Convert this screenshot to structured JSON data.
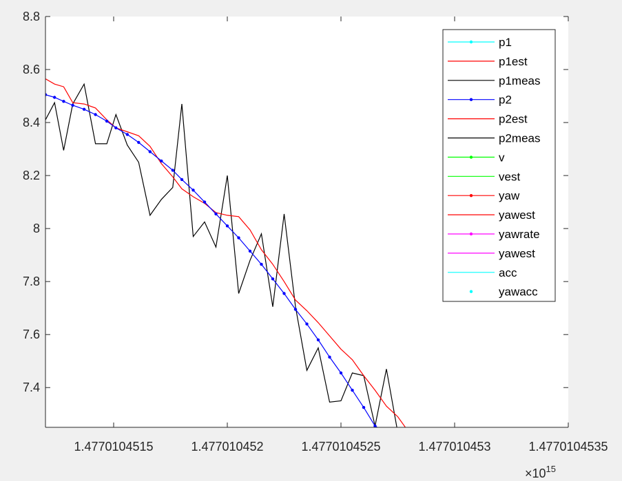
{
  "chart_data": {
    "type": "line",
    "title": "",
    "xlabel": "",
    "ylabel": "",
    "xlim": [
      1.4770104512,
      1.4770104535
    ],
    "ylim": [
      7.25,
      8.8
    ],
    "x_exponent_label": "×10",
    "x_exponent": "15",
    "x_ticks": [
      1.4770104515,
      1.477010452,
      1.4770104525,
      1.477010453,
      1.4770104535
    ],
    "x_tick_labels": [
      "1.4770104515",
      "1.477010452",
      "1.4770104525",
      "1.477010453",
      "1.4770104535"
    ],
    "y_ticks": [
      7.4,
      7.6,
      7.8,
      8.0,
      8.2,
      8.4,
      8.6,
      8.8
    ],
    "y_tick_labels": [
      "7.4",
      "7.6",
      "7.8",
      "8",
      "8.2",
      "8.4",
      "8.6",
      "8.8"
    ],
    "legend_position": "top-right",
    "background": "#ffffff",
    "series": [
      {
        "name": "p2meas",
        "color": "#000000",
        "marker": "none",
        "x": [
          1.4770104512,
          1.47701045124,
          1.47701045128,
          1.47701045132,
          1.47701045137,
          1.47701045142,
          1.47701045147,
          1.47701045151,
          1.47701045156,
          1.47701045161,
          1.47701045166,
          1.47701045171,
          1.47701045176,
          1.4770104518,
          1.47701045185,
          1.4770104519,
          1.47701045195,
          1.477010452,
          1.47701045205,
          1.4770104521,
          1.47701045215,
          1.4770104522,
          1.47701045225,
          1.4770104523,
          1.47701045235,
          1.4770104524,
          1.47701045245,
          1.4770104525,
          1.47701045255,
          1.4770104526,
          1.47701045265,
          1.4770104527,
          1.47701045275,
          1.4770104528,
          1.47701045284,
          1.47701045288
        ],
        "y": [
          8.41,
          8.475,
          8.295,
          8.47,
          8.545,
          8.32,
          8.32,
          8.43,
          8.315,
          8.25,
          8.05,
          8.11,
          8.155,
          8.47,
          7.97,
          8.025,
          7.93,
          8.2,
          7.755,
          7.88,
          7.98,
          7.705,
          8.055,
          7.705,
          7.465,
          7.55,
          7.345,
          7.35,
          7.455,
          7.445,
          7.255,
          7.47,
          7.23,
          7.23,
          7.23,
          7.23
        ]
      },
      {
        "name": "p2est",
        "color": "#ff0000",
        "marker": "none",
        "x": [
          1.4770104512,
          1.47701045124,
          1.47701045128,
          1.47701045132,
          1.47701045137,
          1.47701045142,
          1.47701045147,
          1.47701045151,
          1.47701045156,
          1.47701045161,
          1.47701045166,
          1.47701045171,
          1.47701045176,
          1.4770104518,
          1.47701045185,
          1.4770104519,
          1.47701045195,
          1.477010452,
          1.47701045205,
          1.4770104521,
          1.47701045215,
          1.4770104522,
          1.47701045225,
          1.4770104523,
          1.47701045235,
          1.4770104524,
          1.47701045245,
          1.4770104525,
          1.47701045255,
          1.4770104526,
          1.47701045265,
          1.4770104527,
          1.47701045275,
          1.4770104528,
          1.47701045284,
          1.47701045288
        ],
        "y": [
          8.565,
          8.545,
          8.535,
          8.475,
          8.47,
          8.455,
          8.41,
          8.38,
          8.365,
          8.35,
          8.31,
          8.245,
          8.195,
          8.15,
          8.12,
          8.095,
          8.06,
          8.05,
          8.045,
          7.995,
          7.92,
          7.865,
          7.8,
          7.73,
          7.69,
          7.645,
          7.595,
          7.545,
          7.505,
          7.445,
          7.39,
          7.33,
          7.29,
          7.23,
          7.23,
          7.23
        ]
      },
      {
        "name": "p2",
        "color": "#0000ff",
        "marker": "dot",
        "x": [
          1.4770104512,
          1.47701045124,
          1.47701045128,
          1.47701045132,
          1.47701045137,
          1.47701045142,
          1.47701045147,
          1.47701045151,
          1.47701045156,
          1.47701045161,
          1.47701045166,
          1.47701045171,
          1.47701045176,
          1.4770104518,
          1.47701045185,
          1.4770104519,
          1.47701045195,
          1.477010452,
          1.47701045205,
          1.4770104521,
          1.47701045215,
          1.4770104522,
          1.47701045225,
          1.4770104523,
          1.47701045235,
          1.4770104524,
          1.47701045245,
          1.4770104525,
          1.47701045255,
          1.4770104526,
          1.47701045265,
          1.4770104527
        ],
        "y": [
          8.505,
          8.495,
          8.48,
          8.465,
          8.45,
          8.43,
          8.405,
          8.38,
          8.355,
          8.325,
          8.29,
          8.255,
          8.22,
          8.185,
          8.145,
          8.1,
          8.055,
          8.01,
          7.965,
          7.915,
          7.865,
          7.81,
          7.755,
          7.695,
          7.64,
          7.58,
          7.515,
          7.455,
          7.39,
          7.325,
          7.255,
          7.23
        ]
      }
    ],
    "legend_entries": [
      {
        "label": "p1",
        "color": "#00ffff",
        "style": "line-dot"
      },
      {
        "label": "p1est",
        "color": "#ff0000",
        "style": "line"
      },
      {
        "label": "p1meas",
        "color": "#000000",
        "style": "line"
      },
      {
        "label": "p2",
        "color": "#0000ff",
        "style": "line-dot"
      },
      {
        "label": "p2est",
        "color": "#ff0000",
        "style": "line"
      },
      {
        "label": "p2meas",
        "color": "#000000",
        "style": "line"
      },
      {
        "label": "v",
        "color": "#00ff00",
        "style": "line-dot"
      },
      {
        "label": "vest",
        "color": "#00ff00",
        "style": "line"
      },
      {
        "label": "yaw",
        "color": "#ff0000",
        "style": "line-dot"
      },
      {
        "label": "yawest",
        "color": "#ff0000",
        "style": "line"
      },
      {
        "label": "yawrate",
        "color": "#ff00ff",
        "style": "line-dot"
      },
      {
        "label": "yawest",
        "color": "#ff00ff",
        "style": "line"
      },
      {
        "label": "acc",
        "color": "#00ffff",
        "style": "line"
      },
      {
        "label": "yawacc",
        "color": "#00ffff",
        "style": "dot"
      }
    ]
  }
}
